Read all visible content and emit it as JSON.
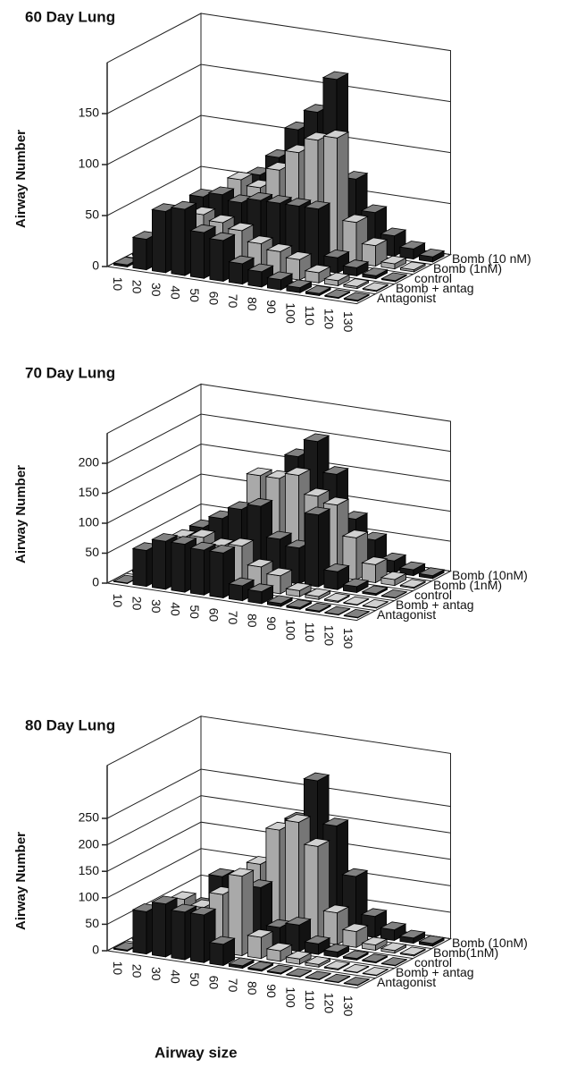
{
  "chart_data": [
    {
      "type": "bar",
      "title": "60 Day Lung",
      "y_label": "Airway Number",
      "categories": [
        "10",
        "20",
        "30",
        "40",
        "50",
        "60",
        "70",
        "80",
        "90",
        "100",
        "110",
        "120",
        "130"
      ],
      "series": [
        {
          "name": "Bomb (10 nM)",
          "color": "#1a1a1a",
          "values": [
            1,
            5,
            30,
            60,
            80,
            110,
            130,
            165,
            70,
            40,
            20,
            10,
            5
          ]
        },
        {
          "name": "Bomb (1nM)",
          "color": "#a9a9a9",
          "values": [
            2,
            10,
            40,
            65,
            60,
            80,
            100,
            115,
            120,
            40,
            20,
            5,
            2
          ]
        },
        {
          "name": "control",
          "color": "#1a1a1a",
          "values": [
            2,
            20,
            55,
            60,
            55,
            60,
            60,
            60,
            60,
            15,
            8,
            3,
            1
          ]
        },
        {
          "name": "Bomb + antag",
          "color": "#a9a9a9",
          "values": [
            1,
            5,
            40,
            50,
            45,
            40,
            30,
            25,
            20,
            10,
            5,
            2,
            1
          ]
        },
        {
          "name": "Antagonist",
          "color": "#1a1a1a",
          "values": [
            2,
            30,
            60,
            65,
            45,
            40,
            20,
            15,
            10,
            5,
            2,
            1,
            1
          ]
        }
      ],
      "ylim": [
        0,
        200
      ],
      "yticks": [
        0,
        50,
        100,
        150
      ],
      "grid": true
    },
    {
      "type": "bar",
      "title": "70 Day Lung",
      "y_label": "Airway Number",
      "categories": [
        "10",
        "20",
        "30",
        "40",
        "50",
        "60",
        "70",
        "80",
        "90",
        "100",
        "110",
        "120",
        "130"
      ],
      "series": [
        {
          "name": "Bomb (10nM)",
          "color": "#1a1a1a",
          "values": [
            1,
            5,
            30,
            80,
            120,
            170,
            200,
            150,
            80,
            50,
            20,
            10,
            5
          ]
        },
        {
          "name": "Bomb (1nM)",
          "color": "#a9a9a9",
          "values": [
            1,
            10,
            40,
            80,
            150,
            150,
            160,
            130,
            120,
            70,
            30,
            10,
            2
          ]
        },
        {
          "name": "control",
          "color": "#1a1a1a",
          "values": [
            1,
            10,
            70,
            90,
            110,
            120,
            70,
            60,
            120,
            30,
            10,
            3,
            1
          ]
        },
        {
          "name": "Bomb + antag",
          "color": "#a9a9a9",
          "values": [
            2,
            30,
            70,
            75,
            65,
            70,
            40,
            30,
            10,
            5,
            2,
            1,
            1
          ]
        },
        {
          "name": "Antagonist",
          "color": "#1a1a1a",
          "values": [
            1,
            60,
            80,
            80,
            75,
            75,
            25,
            20,
            5,
            3,
            2,
            1,
            1
          ]
        }
      ],
      "ylim": [
        0,
        250
      ],
      "yticks": [
        0,
        50,
        100,
        150,
        200
      ],
      "grid": true
    },
    {
      "type": "bar",
      "title": "80 Day Lung",
      "y_label": "Airway Number",
      "x_label": "Airway size",
      "categories": [
        "10",
        "20",
        "30",
        "40",
        "50",
        "60",
        "70",
        "80",
        "90",
        "100",
        "110",
        "120",
        "130"
      ],
      "series": [
        {
          "name": "Bomb (10nM)",
          "color": "#1a1a1a",
          "values": [
            1,
            5,
            20,
            70,
            100,
            200,
            280,
            200,
            110,
            40,
            20,
            10,
            5
          ]
        },
        {
          "name": "Bomb(1nM)",
          "color": "#a9a9a9",
          "values": [
            1,
            10,
            40,
            80,
            130,
            200,
            220,
            180,
            60,
            30,
            10,
            5,
            2
          ]
        },
        {
          "name": "control",
          "color": "#1a1a1a",
          "values": [
            1,
            30,
            60,
            120,
            100,
            110,
            40,
            50,
            20,
            10,
            3,
            2,
            1
          ]
        },
        {
          "name": "Bomb + antag",
          "color": "#a9a9a9",
          "values": [
            1,
            60,
            90,
            80,
            110,
            150,
            40,
            20,
            10,
            5,
            2,
            1,
            1
          ]
        },
        {
          "name": "Antagonist",
          "color": "#1a1a1a",
          "values": [
            2,
            80,
            100,
            90,
            90,
            40,
            5,
            3,
            2,
            1,
            1,
            1,
            1
          ]
        }
      ],
      "ylim": [
        0,
        350
      ],
      "yticks": [
        0,
        50,
        100,
        150,
        200,
        250
      ],
      "grid": true
    }
  ]
}
